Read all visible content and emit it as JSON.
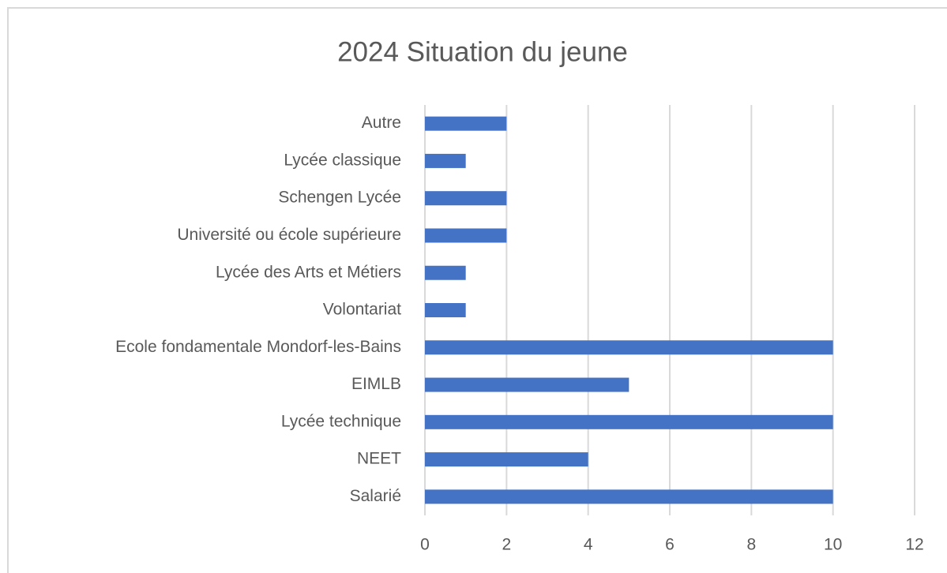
{
  "chart_data": {
    "type": "barh",
    "title": "2024 Situation du jeune",
    "categories": [
      "Autre",
      "Lycée classique",
      "Schengen Lycée",
      "Université ou école supérieure",
      "Lycée des Arts et Métiers",
      "Volontariat",
      "Ecole fondamentale Mondorf-les-Bains",
      "EIMLB",
      "Lycée technique",
      "NEET",
      "Salarié"
    ],
    "values": [
      2,
      1,
      2,
      2,
      1,
      1,
      10,
      5,
      10,
      4,
      10
    ],
    "color": "#4472c4",
    "xlim": [
      0,
      12
    ],
    "xticks": [
      0,
      2,
      4,
      6,
      8,
      10,
      12
    ],
    "grid": true
  }
}
